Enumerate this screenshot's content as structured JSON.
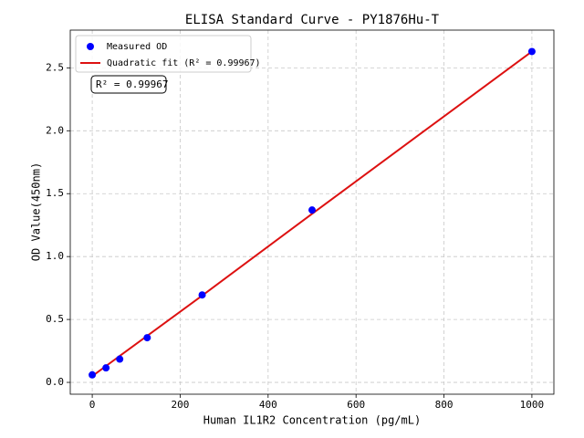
{
  "chart_data": {
    "type": "scatter",
    "title": "ELISA Standard Curve - PY1876Hu-T",
    "xlabel": "Human IL1R2 Concentration (pg/mL)",
    "ylabel": "OD Value(450nm)",
    "series": [
      {
        "name": "Measured OD",
        "type": "scatter",
        "color": "#0000ff",
        "x": [
          0,
          31.25,
          62.5,
          125,
          250,
          500,
          1000
        ],
        "values": [
          0.06,
          0.115,
          0.185,
          0.355,
          0.695,
          1.37,
          2.63
        ]
      },
      {
        "name": "Quadratic fit (R² = 0.99967)",
        "type": "line",
        "color": "#dd1111",
        "x": [
          0,
          250,
          500,
          750,
          1000
        ],
        "values": [
          0.05,
          0.69,
          1.34,
          1.985,
          2.63
        ]
      }
    ],
    "annotation": "R² = 0.99967",
    "xlim": [
      -50,
      1050
    ],
    "xticks": [
      0,
      200,
      400,
      600,
      800,
      1000
    ],
    "ylim": [
      -0.094,
      2.8
    ],
    "yticks": [
      {
        "value": 0,
        "label": "0.0"
      },
      0.5,
      {
        "value": 1,
        "label": "1.0"
      },
      1.5,
      {
        "value": 2,
        "label": "2.0"
      },
      2.5
    ],
    "grid": true,
    "legend": "upper left"
  }
}
